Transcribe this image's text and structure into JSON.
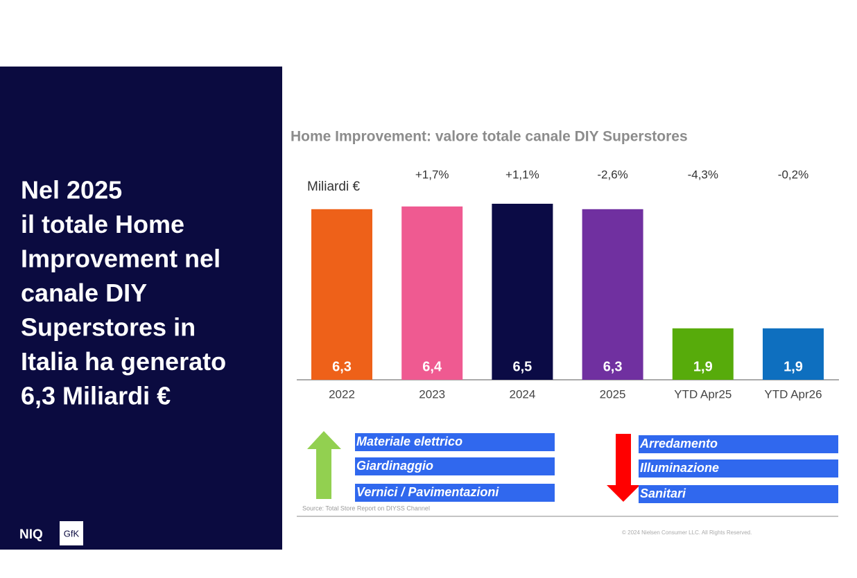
{
  "headline": [
    "Nel 2025",
    "il totale Home",
    "Improvement nel",
    "canale DIY",
    "Superstores in",
    "Italia ha generato",
    "6,3 Miliardi €"
  ],
  "logos": [
    "NIQ",
    "GfK"
  ],
  "chart_data": {
    "type": "bar",
    "title": "Home Improvement: valore totale canale DIY Superstores",
    "unit_label": "Miliardi €",
    "categories": [
      "2022",
      "2023",
      "2024",
      "2025",
      "YTD Apr25",
      "YTD Apr26"
    ],
    "values": [
      6.3,
      6.4,
      6.5,
      6.3,
      1.9,
      1.9
    ],
    "value_labels": [
      "6,3",
      "6,4",
      "6,5",
      "6,3",
      "1,9",
      "1,9"
    ],
    "annotations": [
      null,
      "+1,7%",
      "+1,1%",
      "-2,6%",
      "-4,3%",
      "-0,2%"
    ],
    "colors": [
      "#ee6119",
      "#ef5a91",
      "#0b0b45",
      "#7030a0",
      "#57ab0b",
      "#0e6fbf"
    ]
  },
  "growing": [
    "Materiale elettrico",
    "Giardinaggio",
    "Vernici / Pavimentazioni"
  ],
  "declining": [
    "Arredamento",
    "Illuminazione",
    "Sanitari"
  ],
  "source": "Source: Total Store Report on DIYSS Channel",
  "copyright": "© 2024 Nielsen Consumer LLC. All Rights Reserved."
}
